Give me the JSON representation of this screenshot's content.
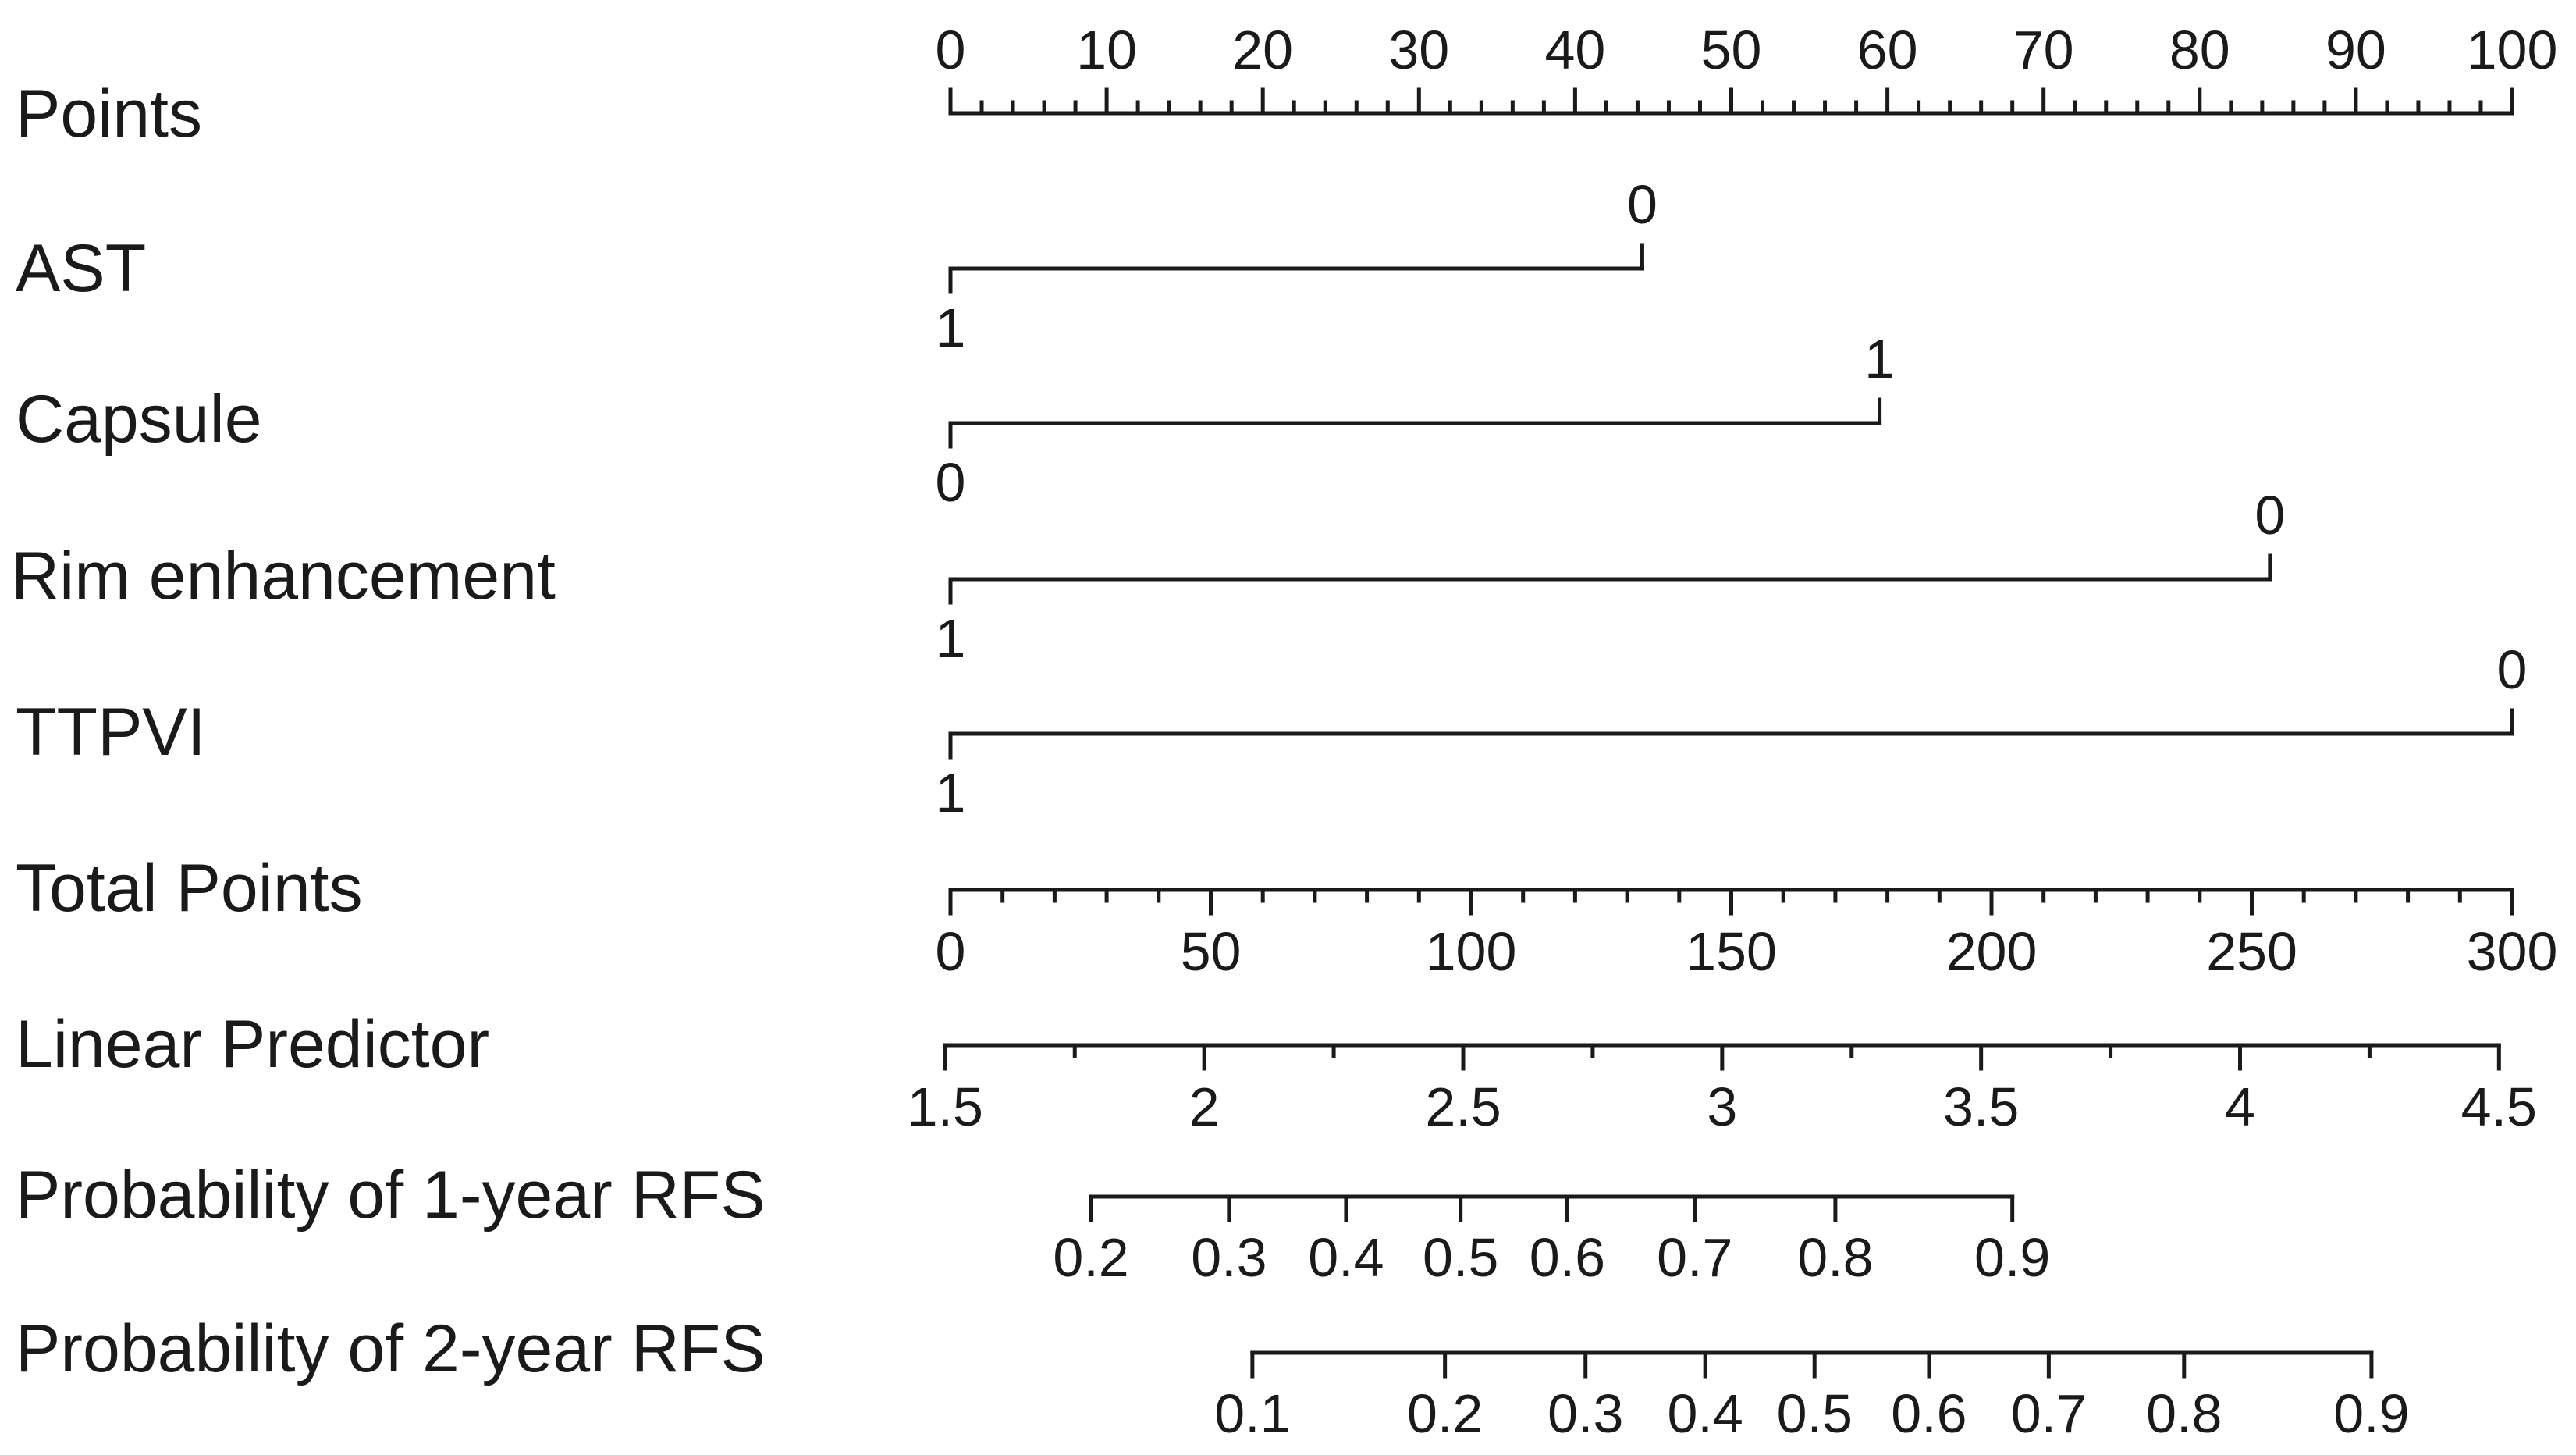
{
  "chart_data": {
    "type": "nomogram",
    "rows": [
      {
        "id": "points",
        "label": "Points",
        "kind": "scale",
        "labels_position": "above",
        "range": [
          0,
          100
        ],
        "ticks": [
          0,
          10,
          20,
          30,
          40,
          50,
          60,
          70,
          80,
          90,
          100
        ],
        "tick_labels": [
          "0",
          "10",
          "20",
          "30",
          "40",
          "50",
          "60",
          "70",
          "80",
          "90",
          "100"
        ],
        "minor_step": 2
      },
      {
        "id": "ast",
        "label": "AST",
        "kind": "categorical",
        "levels": [
          {
            "label": "1",
            "points": 0
          },
          {
            "label": "0",
            "points": 44.3
          }
        ]
      },
      {
        "id": "capsule",
        "label": "Capsule",
        "kind": "categorical",
        "levels": [
          {
            "label": "0",
            "points": 0
          },
          {
            "label": "1",
            "points": 59.5
          }
        ]
      },
      {
        "id": "rim",
        "label": "Rim enhancement",
        "kind": "categorical",
        "levels": [
          {
            "label": "1",
            "points": 0
          },
          {
            "label": "0",
            "points": 84.5
          }
        ]
      },
      {
        "id": "ttpvi",
        "label": "TTPVI",
        "kind": "categorical",
        "levels": [
          {
            "label": "1",
            "points": 0
          },
          {
            "label": "0",
            "points": 100
          }
        ]
      },
      {
        "id": "total",
        "label": "Total Points",
        "kind": "scale",
        "labels_position": "below",
        "range": [
          0,
          300
        ],
        "ticks": [
          0,
          50,
          100,
          150,
          200,
          250,
          300
        ],
        "tick_labels": [
          "0",
          "50",
          "100",
          "150",
          "200",
          "250",
          "300"
        ],
        "minor_step": 10
      },
      {
        "id": "lp",
        "label": "Linear Predictor",
        "kind": "scale",
        "labels_position": "below",
        "total_points_at": [
          [
            1.5,
            -1
          ],
          [
            4.5,
            297.5
          ]
        ],
        "ticks": [
          1.5,
          2,
          2.5,
          3,
          3.5,
          4,
          4.5
        ],
        "tick_labels": [
          "1.5",
          "2",
          "2.5",
          "3",
          "3.5",
          "4",
          "4.5"
        ],
        "minor_step": 0.25
      },
      {
        "id": "rfs1",
        "label": "Probability of 1-year RFS",
        "kind": "probability",
        "total_points": [
          27,
          53.5,
          76,
          98,
          118.5,
          143,
          170,
          204
        ],
        "values": [
          0.2,
          0.3,
          0.4,
          0.5,
          0.6,
          0.7,
          0.8,
          0.9
        ],
        "tick_labels": [
          "0.2",
          "0.3",
          "0.4",
          "0.5",
          "0.6",
          "0.7",
          "0.8",
          "0.9"
        ]
      },
      {
        "id": "rfs2",
        "label": "Probability of 2-year RFS",
        "kind": "probability",
        "total_points": [
          58,
          95,
          122,
          145,
          166,
          188,
          211,
          237,
          273
        ],
        "values": [
          0.1,
          0.2,
          0.3,
          0.4,
          0.5,
          0.6,
          0.7,
          0.8,
          0.9
        ],
        "tick_labels": [
          "0.1",
          "0.2",
          "0.3",
          "0.4",
          "0.5",
          "0.6",
          "0.7",
          "0.8",
          "0.9"
        ]
      }
    ]
  }
}
